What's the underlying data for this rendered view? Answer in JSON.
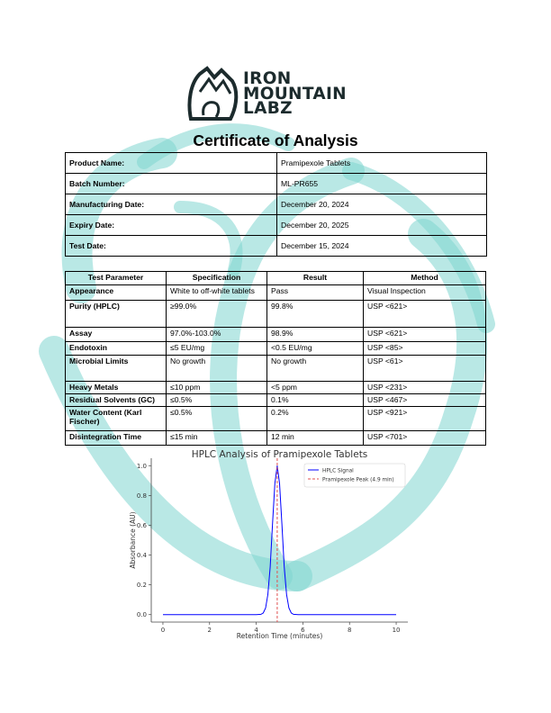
{
  "logo": {
    "lines": [
      "IRON",
      "MOUNTAIN",
      "LABZ"
    ],
    "brand_color": "#1c2b2d"
  },
  "watermark_color": "#7fd6cf",
  "title": "Certificate of Analysis",
  "info": [
    {
      "label": "Product Name:",
      "value": "Pramipexole Tablets"
    },
    {
      "label": "Batch Number:",
      "value": "ML-PR655"
    },
    {
      "label": "Manufacturing Date:",
      "value": "December 20, 2024"
    },
    {
      "label": "Expiry Date:",
      "value": "December 20, 2025"
    },
    {
      "label": "Test Date:",
      "value": "December 15, 2024"
    }
  ],
  "tests": {
    "headers": [
      "Test Parameter",
      "Specification",
      "Result",
      "Method"
    ],
    "rows": [
      [
        "Appearance",
        "White to off-white tablets",
        "Pass",
        "Visual Inspection"
      ],
      [
        "Purity (HPLC)",
        "≥99.0%",
        "99.8%",
        "USP <621>"
      ],
      [
        "Assay",
        "97.0%-103.0%",
        "98.9%",
        "USP <621>"
      ],
      [
        "Endotoxin",
        "≤5 EU/mg",
        "<0.5 EU/mg",
        "USP <85>"
      ],
      [
        "Microbial Limits",
        "No growth",
        "No growth",
        "USP <61>"
      ],
      [
        "Heavy Metals",
        "≤10 ppm",
        "<5 ppm",
        "USP <231>"
      ],
      [
        "Residual Solvents (GC)",
        "≤0.5%",
        "0.1%",
        "USP <467>"
      ],
      [
        "Water Content (Karl Fischer)",
        "≤0.5%",
        "0.2%",
        "USP <921>"
      ],
      [
        "Disintegration Time",
        "≤15 min",
        "12 min",
        "USP <701>"
      ]
    ]
  },
  "chart_data": {
    "type": "line",
    "title": "HPLC Analysis of Pramipexole Tablets",
    "xlabel": "Retention Time (minutes)",
    "ylabel": "Absorbance (AU)",
    "xlim": [
      -0.5,
      10.5
    ],
    "ylim": [
      -0.05,
      1.05
    ],
    "xticks": [
      "0",
      "2",
      "4",
      "6",
      "8",
      "10"
    ],
    "yticks": [
      "0.0",
      "0.2",
      "0.4",
      "0.6",
      "0.8",
      "1.0"
    ],
    "grid": false,
    "legend_position": "top-right",
    "series": [
      {
        "name": "HPLC Signal",
        "color": "#0000ff",
        "x": [
          0,
          1,
          2,
          3,
          4,
          4.2,
          4.3,
          4.4,
          4.5,
          4.6,
          4.7,
          4.8,
          4.9,
          5.0,
          5.1,
          5.2,
          5.3,
          5.4,
          5.5,
          5.6,
          5.8,
          6,
          7,
          8,
          9,
          10
        ],
        "y": [
          0,
          0,
          0,
          0,
          0,
          0.002,
          0.011,
          0.044,
          0.135,
          0.32,
          0.61,
          0.88,
          1.0,
          0.88,
          0.61,
          0.32,
          0.135,
          0.044,
          0.011,
          0.002,
          0,
          0,
          0,
          0,
          0,
          0
        ]
      }
    ],
    "annotations": [
      {
        "type": "vline",
        "x": 4.9,
        "label": "Pramipexole Peak (4.9 min)",
        "color": "#e05050",
        "style": "dashed"
      }
    ]
  }
}
